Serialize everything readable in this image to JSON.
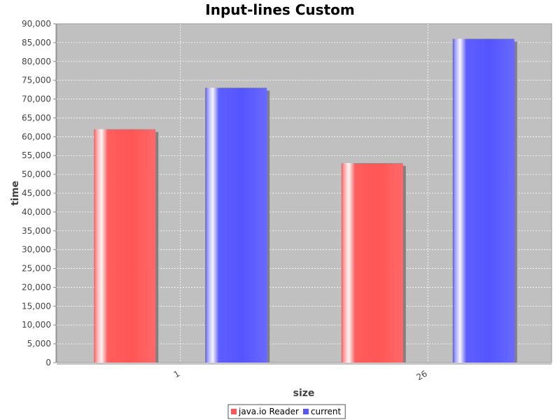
{
  "chart_data": {
    "type": "bar",
    "title": "Input-lines Custom",
    "xlabel": "size",
    "ylabel": "time",
    "categories": [
      "1",
      "26"
    ],
    "series": [
      {
        "name": "java.io Reader",
        "values": [
          62000,
          53000
        ],
        "color": "#ff5555"
      },
      {
        "name": "current",
        "values": [
          73000,
          86000
        ],
        "color": "#5555ff"
      }
    ],
    "ylim": [
      0,
      90000
    ],
    "yticks": [
      0,
      5000,
      10000,
      15000,
      20000,
      25000,
      30000,
      35000,
      40000,
      45000,
      50000,
      55000,
      60000,
      65000,
      70000,
      75000,
      80000,
      85000,
      90000
    ],
    "grid": true,
    "legend_position": "bottom",
    "plot_background": "#c0c0c0"
  }
}
